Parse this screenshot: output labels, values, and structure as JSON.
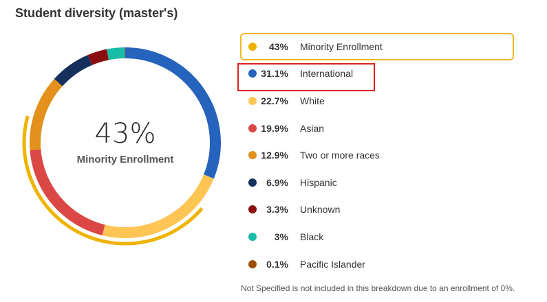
{
  "title": "Student diversity (master's)",
  "center": {
    "value": "43%",
    "label": "Minority Enrollment"
  },
  "chart_data": {
    "type": "pie",
    "style": "donut",
    "categories": [
      "International",
      "White",
      "Asian",
      "Two or more races",
      "Hispanic",
      "Unknown",
      "Black",
      "Pacific Islander"
    ],
    "values": [
      31.1,
      22.7,
      19.9,
      12.9,
      6.9,
      3.3,
      3.0,
      0.1
    ],
    "colors": [
      "#2563bd",
      "#ffc554",
      "#db4745",
      "#e3911c",
      "#16305e",
      "#8b0e0e",
      "#19bda6",
      "#9a4f00"
    ],
    "minority_share": 43,
    "minority_arc_color": "#efb300",
    "legend": [
      {
        "pct": "43%",
        "label": "Minority Enrollment",
        "color": "#efb300",
        "active": true
      },
      {
        "pct": "31.1%",
        "label": "International",
        "color": "#2563bd"
      },
      {
        "pct": "22.7%",
        "label": "White",
        "color": "#ffc554"
      },
      {
        "pct": "19.9%",
        "label": "Asian",
        "color": "#db4745"
      },
      {
        "pct": "12.9%",
        "label": "Two or more races",
        "color": "#e3911c"
      },
      {
        "pct": "6.9%",
        "label": "Hispanic",
        "color": "#16305e"
      },
      {
        "pct": "3.3%",
        "label": "Unknown",
        "color": "#8b0e0e"
      },
      {
        "pct": "3%",
        "label": "Black",
        "color": "#19bda6"
      },
      {
        "pct": "0.1%",
        "label": "Pacific Islander",
        "color": "#9a4f00"
      }
    ],
    "legend_position": "right"
  },
  "footnote": "Not Specified is not included in this breakdown due to an enrollment of 0%."
}
